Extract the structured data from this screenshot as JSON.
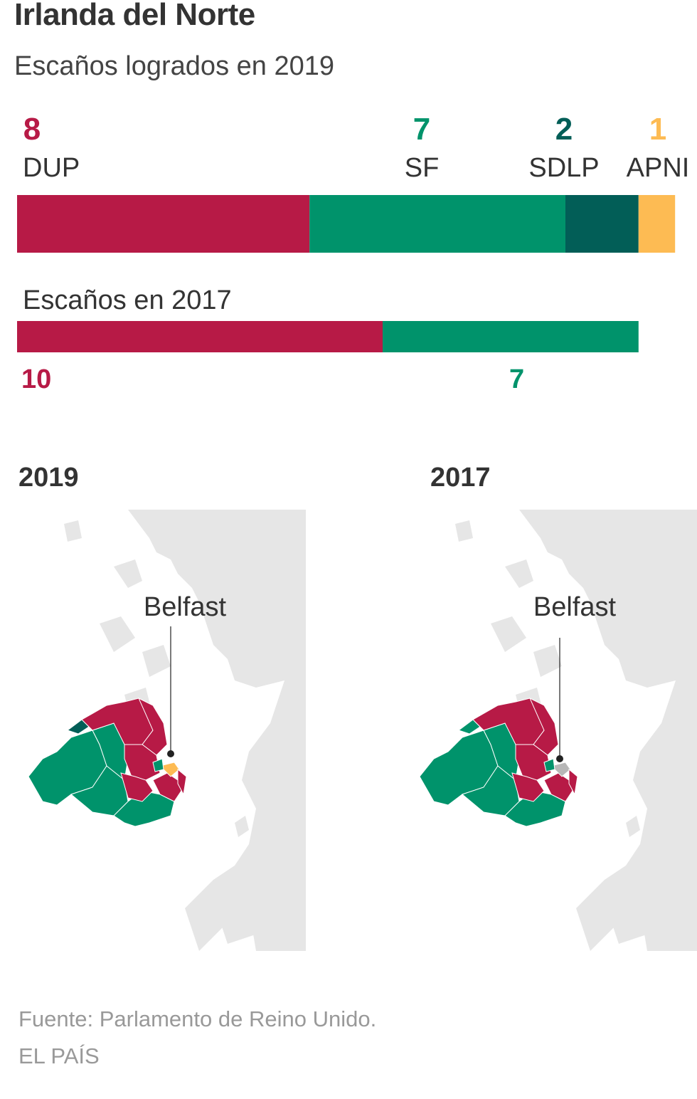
{
  "header": {
    "title": "Irlanda del Norte",
    "subtitle": "Escaños logrados en 2019"
  },
  "chart_data": [
    {
      "type": "bar",
      "orientation": "horizontal-stacked",
      "title": "Escaños logrados en 2019",
      "series": [
        {
          "name": "DUP",
          "values": [
            8
          ],
          "color": "#b71a46"
        },
        {
          "name": "SF",
          "values": [
            7
          ],
          "color": "#00936b"
        },
        {
          "name": "SDLP",
          "values": [
            2
          ],
          "color": "#025e57"
        },
        {
          "name": "APNI",
          "values": [
            1
          ],
          "color": "#fdbb53"
        }
      ]
    },
    {
      "type": "bar",
      "orientation": "horizontal-stacked",
      "title": "Escaños en 2017",
      "series": [
        {
          "values": [
            10
          ],
          "color": "#b71a46"
        },
        {
          "values": [
            7
          ],
          "color": "#00936b"
        }
      ]
    }
  ],
  "maps": {
    "left": {
      "year": "2019",
      "city_label": "Belfast"
    },
    "right": {
      "year": "2017",
      "city_label": "Belfast"
    }
  },
  "colors": {
    "DUP": "#b71a46",
    "SF": "#00936b",
    "SDLP": "#025e57",
    "APNI": "#fdbb53",
    "land": "#e6e6e6"
  },
  "footer": {
    "source": "Fuente: Parlamento de Reino Unido.",
    "credit": "EL PAÍS"
  }
}
